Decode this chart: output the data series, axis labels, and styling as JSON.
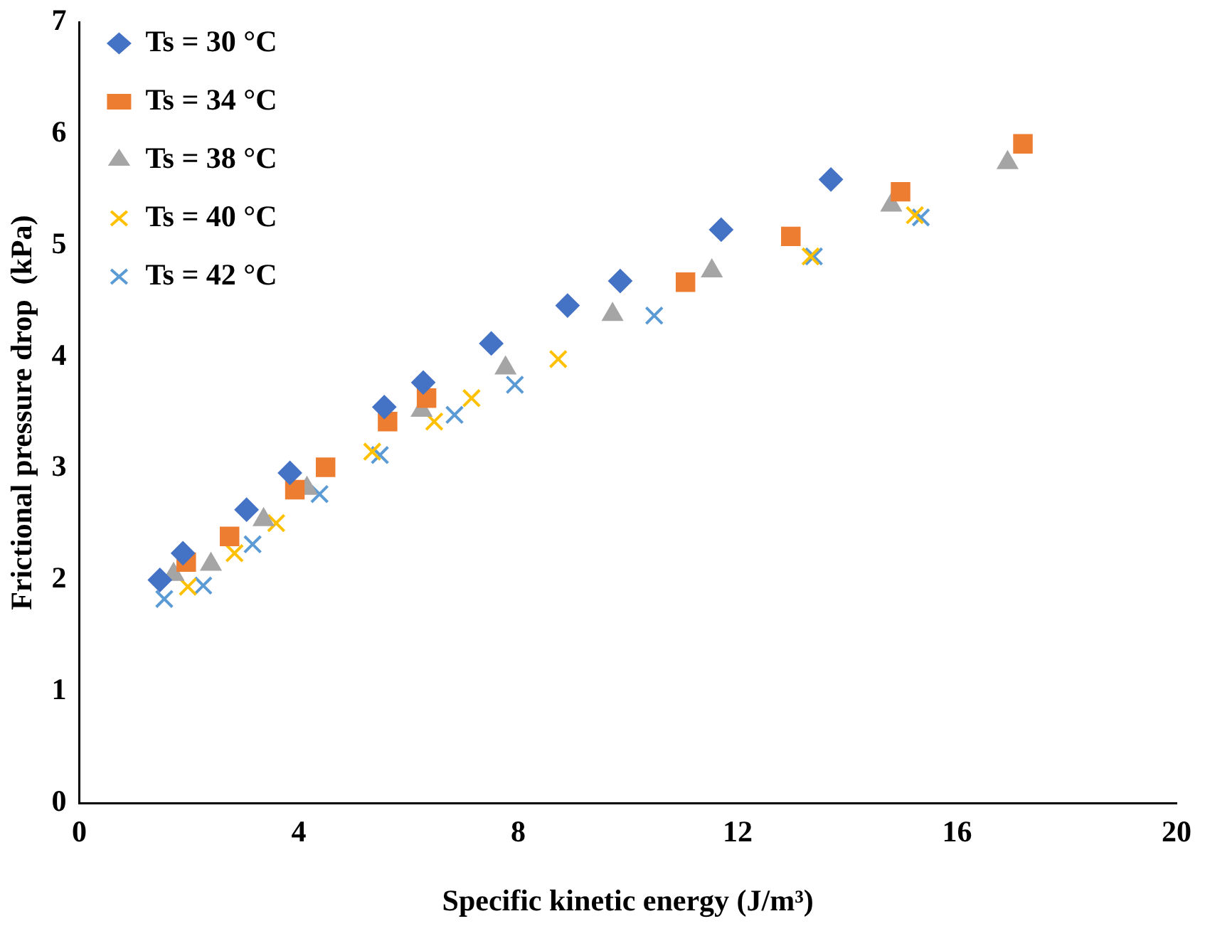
{
  "chart_data": {
    "type": "scatter",
    "xlabel": "Specific kinetic energy (J/m³)",
    "ylabel": "Frictional pressure drop  (kPa)",
    "xlim": [
      0,
      20
    ],
    "xticks": [
      0,
      4,
      8,
      12,
      16,
      20
    ],
    "ylim": [
      0,
      7
    ],
    "yticks": [
      0,
      1,
      2,
      3,
      4,
      5,
      6,
      7
    ],
    "grid": false,
    "legend": "top left",
    "series": [
      {
        "name": "Ts = 30 °C",
        "color": "#4472c4",
        "marker": "diamond",
        "x": [
          1.47,
          1.89,
          3.05,
          3.84,
          5.56,
          6.27,
          7.51,
          8.9,
          9.86,
          11.7,
          13.7
        ],
        "values": [
          2.0,
          2.24,
          2.63,
          2.96,
          3.55,
          3.77,
          4.12,
          4.46,
          4.68,
          5.14,
          5.59
        ]
      },
      {
        "name": "Ts = 34 °C",
        "color": "#ed7d31",
        "marker": "square",
        "x": [
          1.95,
          2.74,
          3.93,
          4.49,
          5.62,
          6.33,
          11.05,
          12.97,
          14.97,
          17.2
        ],
        "values": [
          2.16,
          2.39,
          2.81,
          3.01,
          3.42,
          3.63,
          4.67,
          5.08,
          5.48,
          5.91
        ]
      },
      {
        "name": "Ts = 38 °C",
        "color": "#a5a5a5",
        "marker": "triangle",
        "x": [
          1.72,
          2.4,
          3.36,
          4.15,
          6.24,
          7.77,
          9.72,
          11.53,
          14.8,
          16.92
        ],
        "values": [
          2.05,
          2.14,
          2.54,
          2.82,
          3.52,
          3.9,
          4.38,
          4.77,
          5.36,
          5.74
        ]
      },
      {
        "name": "Ts = 40 °C",
        "color": "#ffc000",
        "marker": "cross",
        "x": [
          1.98,
          2.83,
          3.59,
          5.34,
          6.47,
          7.15,
          8.73,
          13.33,
          15.23
        ],
        "values": [
          1.94,
          2.24,
          2.51,
          3.15,
          3.42,
          3.63,
          3.98,
          4.9,
          5.27
        ]
      },
      {
        "name": "Ts = 42 °C",
        "color": "#5b9bd5",
        "marker": "cross",
        "x": [
          1.55,
          2.26,
          3.16,
          4.38,
          5.48,
          6.84,
          7.94,
          10.48,
          13.39,
          15.34
        ],
        "values": [
          1.83,
          1.95,
          2.32,
          2.77,
          3.12,
          3.48,
          3.75,
          4.37,
          4.9,
          5.25
        ]
      }
    ]
  }
}
